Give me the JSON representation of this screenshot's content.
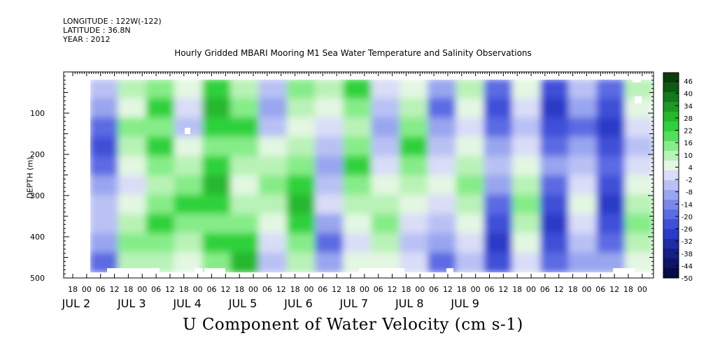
{
  "header": {
    "longitude": "LONGITUDE : 122W(-122)",
    "latitude": "LATITUDE : 36.8N",
    "year": "YEAR : 2012"
  },
  "chart_data": {
    "type": "heatmap",
    "title": "Hourly Gridded MBARI Mooring M1 Sea Water Temperature and Salinity Observations",
    "xlabel": "U Component of Water Velocity (cm s-1)",
    "ylabel": "DEPTH (m)",
    "y_axis": {
      "range": [
        0,
        500
      ],
      "reversed": true,
      "ticks": [
        100,
        200,
        300,
        400,
        500
      ]
    },
    "x_axis": {
      "hour_tick_labels": [
        "18",
        "00",
        "06",
        "12",
        "18",
        "00",
        "06",
        "12",
        "18",
        "00",
        "06",
        "12",
        "18",
        "00",
        "06",
        "12",
        "18",
        "00",
        "06",
        "12",
        "18",
        "00",
        "06",
        "12",
        "18",
        "00",
        "06",
        "12",
        "18",
        "00",
        "06",
        "12",
        "18",
        "00",
        "06",
        "12",
        "18",
        "00",
        "06",
        "12",
        "18",
        "00",
        "06",
        "12",
        "18",
        "00",
        "06",
        "12"
      ],
      "day_labels": [
        "JUL 2",
        "JUL 3",
        "JUL 4",
        "JUL 5",
        "JUL 6",
        "JUL 7",
        "JUL 8",
        "JUL 9"
      ]
    },
    "colorbar": {
      "labels": [
        "46",
        "40",
        "34",
        "28",
        "22",
        "16",
        "10",
        "4",
        "-2",
        "-8",
        "-14",
        "-20",
        "-26",
        "-32",
        "-38",
        "-44",
        "-50"
      ],
      "colors": [
        "#0a3d0a",
        "#0f5a12",
        "#147a1a",
        "#1b9a24",
        "#25b82f",
        "#2fd13a",
        "#52e05a",
        "#86ec88",
        "#b9f2b7",
        "#e3f7e2",
        "#d9ddf7",
        "#b9c1f4",
        "#99a5ef",
        "#7a88ea",
        "#5c6be3",
        "#3f50d8",
        "#2a3bc8",
        "#1f2ca8",
        "#161f86",
        "#0e1566",
        "#070a47"
      ]
    },
    "series_note": "",
    "columns": [
      {
        "x": 0,
        "v": [
          -8,
          -14,
          -20,
          -26,
          -20,
          -14,
          -8,
          -8,
          -14,
          -20
        ]
      },
      {
        "x": 1,
        "v": [
          10,
          4,
          16,
          10,
          4,
          -2,
          4,
          10,
          16,
          10
        ]
      },
      {
        "x": 2,
        "v": [
          16,
          22,
          16,
          22,
          16,
          10,
          16,
          22,
          16,
          10
        ]
      },
      {
        "x": 3,
        "v": [
          4,
          -2,
          -8,
          4,
          10,
          16,
          22,
          16,
          10,
          4
        ]
      },
      {
        "x": 4,
        "v": [
          22,
          28,
          22,
          16,
          22,
          28,
          22,
          16,
          22,
          16
        ]
      },
      {
        "x": 5,
        "v": [
          10,
          16,
          22,
          16,
          10,
          4,
          10,
          16,
          22,
          28
        ]
      },
      {
        "x": 6,
        "v": [
          -8,
          -14,
          -8,
          4,
          10,
          16,
          10,
          4,
          -2,
          -8
        ]
      },
      {
        "x": 7,
        "v": [
          16,
          10,
          4,
          10,
          16,
          22,
          28,
          22,
          16,
          10
        ]
      },
      {
        "x": 8,
        "v": [
          10,
          4,
          -2,
          -8,
          -14,
          -8,
          -2,
          -14,
          -20,
          -14
        ]
      },
      {
        "x": 9,
        "v": [
          22,
          16,
          10,
          16,
          22,
          16,
          10,
          4,
          -2,
          4
        ]
      },
      {
        "x": 10,
        "v": [
          -2,
          -8,
          -14,
          -8,
          -2,
          4,
          10,
          16,
          10,
          4
        ]
      },
      {
        "x": 11,
        "v": [
          4,
          10,
          16,
          22,
          16,
          10,
          4,
          -2,
          -8,
          -2
        ]
      },
      {
        "x": 12,
        "v": [
          -14,
          -20,
          -14,
          -8,
          -2,
          4,
          -2,
          -8,
          -14,
          -20
        ]
      },
      {
        "x": 13,
        "v": [
          10,
          4,
          -2,
          4,
          10,
          16,
          10,
          4,
          -2,
          -8
        ]
      },
      {
        "x": 14,
        "v": [
          -20,
          -26,
          -20,
          -14,
          -8,
          -14,
          -20,
          -26,
          -32,
          -26
        ]
      },
      {
        "x": 15,
        "v": [
          4,
          -2,
          -8,
          -2,
          4,
          10,
          16,
          10,
          4,
          -2
        ]
      },
      {
        "x": 16,
        "v": [
          -26,
          -32,
          -26,
          -20,
          -14,
          -20,
          -26,
          -32,
          -26,
          -20
        ]
      },
      {
        "x": 17,
        "v": [
          -8,
          -14,
          -20,
          -14,
          -8,
          -2,
          4,
          -2,
          -8,
          -14
        ]
      },
      {
        "x": 18,
        "v": [
          -20,
          -26,
          -32,
          -26,
          -20,
          -26,
          -32,
          -26,
          -20,
          -14
        ]
      },
      {
        "x": 19,
        "v": [
          10,
          4,
          -2,
          -8,
          -2,
          4,
          10,
          16,
          10,
          4
        ]
      }
    ]
  }
}
